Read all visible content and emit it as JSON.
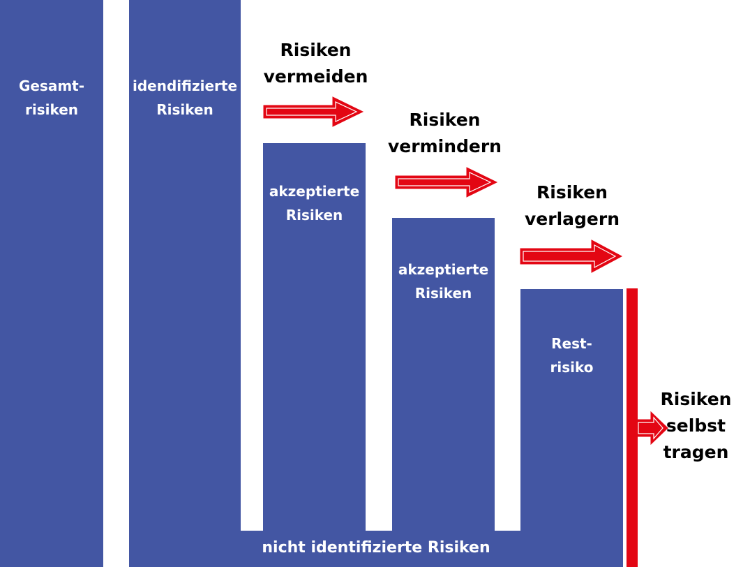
{
  "colors": {
    "bar": "#4356a3",
    "arrow": "#e30613",
    "text": "#000000"
  },
  "bars": {
    "gesamt": "Gesamt-\nrisiken",
    "identifiziert": "idendifizierte\nRisiken",
    "akzeptiert1": "akzeptierte\nRisiken",
    "akzeptiert2": "akzeptierte\nRisiken",
    "rest": "Rest-\nrisiko"
  },
  "base": {
    "label": "nicht identifizierte Risiken"
  },
  "steps": {
    "vermeiden": "Risiken\nvermeiden",
    "vermindern": "Risiken\nvermindern",
    "verlagern": "Risiken\nverlagern",
    "tragen": "Risiken\nselbst\ntragen"
  },
  "icons": {
    "arrow1": "right-arrow-icon",
    "arrow2": "right-arrow-icon",
    "arrow3": "right-arrow-icon",
    "arrow4": "right-arrow-icon"
  }
}
